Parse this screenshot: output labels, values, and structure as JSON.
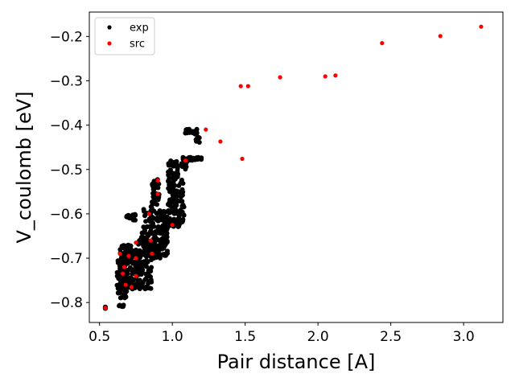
{
  "chart_data": {
    "type": "scatter",
    "title": "",
    "xlabel": "Pair distance [A]",
    "ylabel": "V_coulomb [eV]",
    "xlim": [
      0.43,
      3.27
    ],
    "ylim": [
      -0.845,
      -0.145
    ],
    "x_ticks": [
      {
        "value": 0.5,
        "label": "0.5"
      },
      {
        "value": 1.0,
        "label": "1.0"
      },
      {
        "value": 1.5,
        "label": "1.5"
      },
      {
        "value": 2.0,
        "label": "2.0"
      },
      {
        "value": 2.5,
        "label": "2.5"
      },
      {
        "value": 3.0,
        "label": "3.0"
      }
    ],
    "y_ticks": [
      {
        "value": -0.8,
        "label": "−0.8"
      },
      {
        "value": -0.7,
        "label": "−0.7"
      },
      {
        "value": -0.6,
        "label": "−0.6"
      },
      {
        "value": -0.5,
        "label": "−0.5"
      },
      {
        "value": -0.4,
        "label": "−0.4"
      },
      {
        "value": -0.3,
        "label": "−0.3"
      },
      {
        "value": -0.2,
        "label": "−0.2"
      }
    ],
    "grid": false,
    "legend_position": "top-left",
    "series": [
      {
        "name": "exp",
        "color": "#000000",
        "clusters": [
          {
            "x": [
              0.54,
              0.54
            ],
            "y": [
              -0.815,
              -0.81
            ],
            "n": 6
          },
          {
            "x": [
              0.63,
              0.67
            ],
            "y": [
              -0.81,
              -0.805
            ],
            "n": 5
          },
          {
            "x": [
              0.62,
              0.7
            ],
            "y": [
              -0.79,
              -0.7
            ],
            "n": 90
          },
          {
            "x": [
              0.64,
              0.72
            ],
            "y": [
              -0.7,
              -0.67
            ],
            "n": 40
          },
          {
            "x": [
              0.7,
              0.78
            ],
            "y": [
              -0.77,
              -0.68
            ],
            "n": 80
          },
          {
            "x": [
              0.76,
              0.86
            ],
            "y": [
              -0.77,
              -0.64
            ],
            "n": 90
          },
          {
            "x": [
              0.68,
              0.75
            ],
            "y": [
              -0.615,
              -0.6
            ],
            "n": 16
          },
          {
            "x": [
              0.8,
              0.9
            ],
            "y": [
              -0.7,
              -0.58
            ],
            "n": 70
          },
          {
            "x": [
              0.86,
              0.91
            ],
            "y": [
              -0.58,
              -0.52
            ],
            "n": 40
          },
          {
            "x": [
              0.9,
              0.97
            ],
            "y": [
              -0.7,
              -0.59
            ],
            "n": 100
          },
          {
            "x": [
              0.96,
              1.05
            ],
            "y": [
              -0.63,
              -0.61
            ],
            "n": 40
          },
          {
            "x": [
              0.97,
              1.04
            ],
            "y": [
              -0.6,
              -0.48
            ],
            "n": 90
          },
          {
            "x": [
              1.04,
              1.08
            ],
            "y": [
              -0.62,
              -0.52
            ],
            "n": 30
          },
          {
            "x": [
              1.06,
              1.1
            ],
            "y": [
              -0.5,
              -0.47
            ],
            "n": 18
          },
          {
            "x": [
              1.08,
              1.2
            ],
            "y": [
              -0.48,
              -0.472
            ],
            "n": 30
          },
          {
            "x": [
              1.08,
              1.17
            ],
            "y": [
              -0.418,
              -0.408
            ],
            "n": 25
          },
          {
            "x": [
              1.15,
              1.19
            ],
            "y": [
              -0.44,
              -0.41
            ],
            "n": 12
          }
        ]
      },
      {
        "name": "src",
        "color": "#ff0000",
        "points": [
          [
            0.54,
            -0.812
          ],
          [
            0.64,
            -0.69
          ],
          [
            0.66,
            -0.735
          ],
          [
            0.67,
            -0.72
          ],
          [
            0.68,
            -0.76
          ],
          [
            0.7,
            -0.695
          ],
          [
            0.72,
            -0.765
          ],
          [
            0.75,
            -0.665
          ],
          [
            0.75,
            -0.7
          ],
          [
            0.75,
            -0.74
          ],
          [
            0.84,
            -0.6
          ],
          [
            0.85,
            -0.66
          ],
          [
            0.86,
            -0.69
          ],
          [
            0.9,
            -0.525
          ],
          [
            0.9,
            -0.555
          ],
          [
            1.0,
            -0.625
          ],
          [
            1.09,
            -0.48
          ],
          [
            1.23,
            -0.41
          ],
          [
            1.33,
            -0.437
          ],
          [
            1.47,
            -0.312
          ],
          [
            1.48,
            -0.476
          ],
          [
            1.52,
            -0.312
          ],
          [
            1.74,
            -0.292
          ],
          [
            2.05,
            -0.29
          ],
          [
            2.12,
            -0.288
          ],
          [
            2.44,
            -0.215
          ],
          [
            2.84,
            -0.199
          ],
          [
            3.12,
            -0.178
          ]
        ]
      }
    ]
  }
}
